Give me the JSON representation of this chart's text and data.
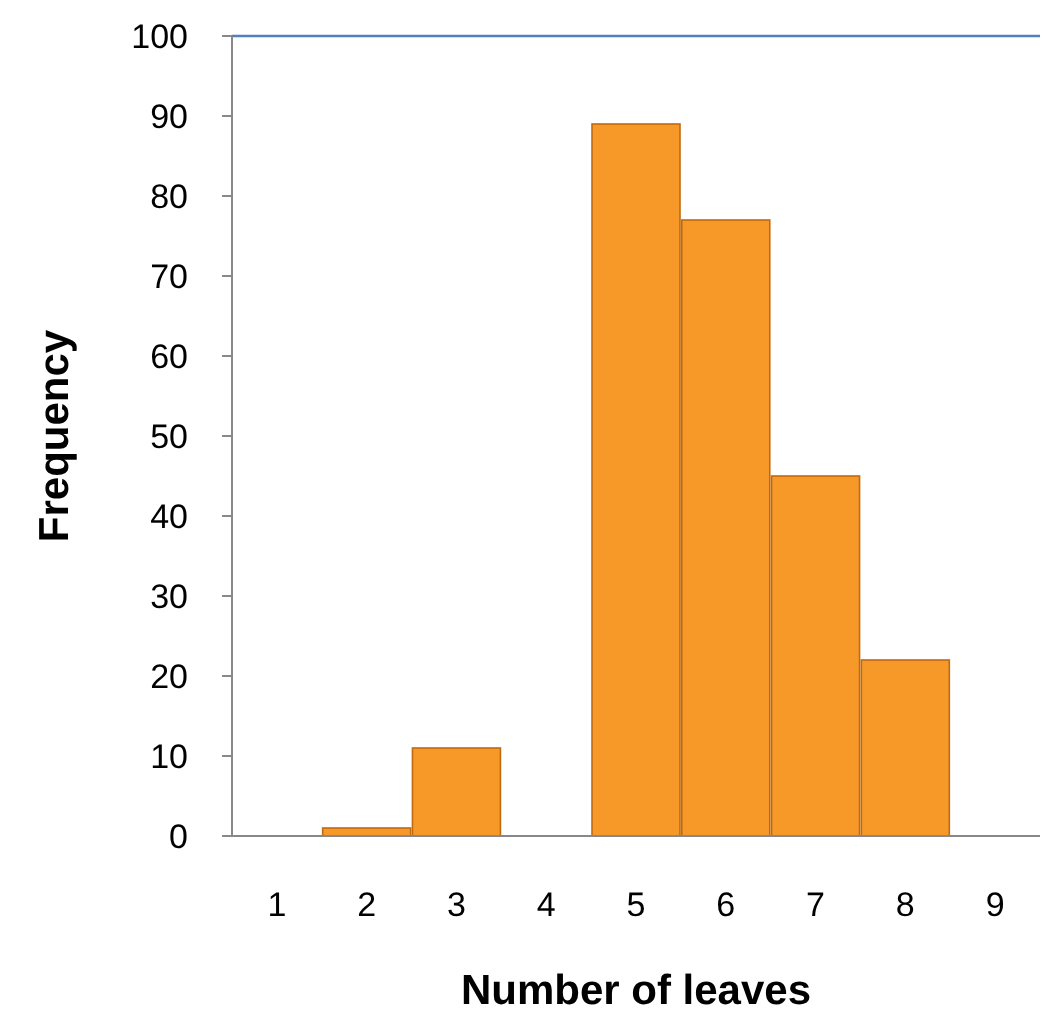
{
  "chart_data": {
    "type": "bar",
    "xlabel": "Number of leaves",
    "ylabel": "Frequency",
    "categories": [
      "1",
      "2",
      "3",
      "4",
      "5",
      "6",
      "7",
      "8",
      "9"
    ],
    "values": [
      0,
      1,
      11,
      0,
      89,
      77,
      45,
      22,
      0
    ],
    "color": "#f7941d",
    "ylim": [
      0,
      100
    ],
    "yticks": [
      0,
      10,
      20,
      30,
      40,
      50,
      60,
      70,
      80,
      90,
      100
    ],
    "ref_lines": [
      {
        "axis": "y",
        "value": 100,
        "color": "#4f81bd"
      }
    ]
  }
}
